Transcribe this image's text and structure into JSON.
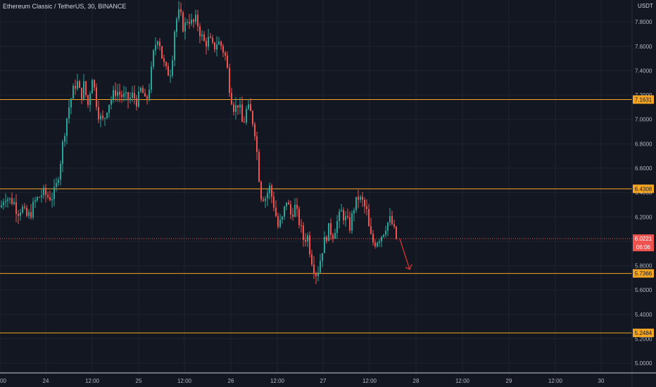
{
  "header": {
    "symbol_title": "Ethereum Classic / TetherUS, 30, BINANCE",
    "currency": "USDT"
  },
  "colors": {
    "background": "#131722",
    "grid": "#1f2330",
    "axis_text": "#b2b5be",
    "level_line": "#f5a623",
    "up_candle": "#26a69a",
    "down_candle": "#ef5350",
    "arrow": "#e53935"
  },
  "chart_data": {
    "type": "candlestick",
    "symbol": "Ethereum Classic / TetherUS",
    "interval": "30",
    "exchange": "BINANCE",
    "currency": "USDT",
    "ylim": [
      4.92,
      7.98
    ],
    "y_ticks": [
      "7.8000",
      "7.6000",
      "7.4000",
      "7.2000",
      "7.0000",
      "6.8000",
      "6.6000",
      "6.4000",
      "6.2000",
      "6.0000",
      "5.8000",
      "5.6000",
      "5.4000",
      "5.2000",
      "5.0000"
    ],
    "x_ticks": [
      "00",
      "24",
      "12:00",
      "25",
      "12:00",
      "26",
      "12:00",
      "27",
      "12:00",
      "28",
      "12:00",
      "29",
      "12:00",
      "30"
    ],
    "horizontal_levels": [
      {
        "price": 7.1631,
        "label": "7.1631"
      },
      {
        "price": 6.4308,
        "label": "6.4308"
      },
      {
        "price": 5.7366,
        "label": "5.7366"
      },
      {
        "price": 5.2484,
        "label": "5.2484"
      }
    ],
    "last_price": {
      "price": 6.0221,
      "label": "6.0221",
      "countdown": "06:06"
    },
    "close_path": [
      [
        0,
        6.28
      ],
      [
        6,
        6.38
      ],
      [
        12,
        6.34
      ],
      [
        18,
        6.33
      ],
      [
        24,
        6.24
      ],
      [
        30,
        6.28
      ],
      [
        36,
        6.2
      ],
      [
        42,
        6.22
      ],
      [
        48,
        6.32
      ],
      [
        54,
        6.36
      ],
      [
        60,
        6.4
      ],
      [
        66,
        6.37
      ],
      [
        72,
        6.36
      ],
      [
        78,
        6.42
      ],
      [
        84,
        6.62
      ],
      [
        90,
        6.88
      ],
      [
        96,
        7.08
      ],
      [
        102,
        7.22
      ],
      [
        108,
        7.32
      ],
      [
        114,
        7.18
      ],
      [
        118,
        7.28
      ],
      [
        124,
        7.12
      ],
      [
        130,
        7.36
      ],
      [
        136,
        7.14
      ],
      [
        140,
        7.02
      ],
      [
        146,
        6.98
      ],
      [
        152,
        7.12
      ],
      [
        158,
        7.18
      ],
      [
        164,
        7.24
      ],
      [
        170,
        7.2
      ],
      [
        176,
        7.18
      ],
      [
        182,
        7.16
      ],
      [
        188,
        7.2
      ],
      [
        194,
        7.14
      ],
      [
        200,
        7.26
      ],
      [
        206,
        7.12
      ],
      [
        212,
        7.3
      ],
      [
        218,
        7.58
      ],
      [
        224,
        7.7
      ],
      [
        230,
        7.48
      ],
      [
        236,
        7.38
      ],
      [
        242,
        7.4
      ],
      [
        248,
        7.8
      ],
      [
        254,
        7.88
      ],
      [
        260,
        7.74
      ],
      [
        266,
        7.84
      ],
      [
        272,
        7.78
      ],
      [
        278,
        7.82
      ],
      [
        284,
        7.7
      ],
      [
        290,
        7.62
      ],
      [
        296,
        7.66
      ],
      [
        302,
        7.58
      ],
      [
        308,
        7.64
      ],
      [
        314,
        7.6
      ],
      [
        320,
        7.5
      ],
      [
        326,
        7.22
      ],
      [
        332,
        7.08
      ],
      [
        338,
        7.14
      ],
      [
        344,
        6.94
      ],
      [
        350,
        7.1
      ],
      [
        356,
        7.04
      ],
      [
        362,
        6.88
      ],
      [
        366,
        6.58
      ],
      [
        370,
        6.38
      ],
      [
        376,
        6.36
      ],
      [
        382,
        6.44
      ],
      [
        388,
        6.3
      ],
      [
        394,
        6.12
      ],
      [
        400,
        6.18
      ],
      [
        406,
        6.34
      ],
      [
        412,
        6.22
      ],
      [
        418,
        6.28
      ],
      [
        424,
        6.16
      ],
      [
        430,
        6.02
      ],
      [
        436,
        6.04
      ],
      [
        440,
        5.9
      ],
      [
        444,
        5.8
      ],
      [
        448,
        5.74
      ],
      [
        452,
        5.78
      ],
      [
        456,
        5.92
      ],
      [
        460,
        6.0
      ],
      [
        466,
        6.1
      ],
      [
        472,
        6.06
      ],
      [
        478,
        6.16
      ],
      [
        484,
        6.24
      ],
      [
        490,
        6.18
      ],
      [
        496,
        6.12
      ],
      [
        502,
        6.28
      ],
      [
        508,
        6.36
      ],
      [
        514,
        6.32
      ],
      [
        520,
        6.24
      ],
      [
        524,
        6.06
      ],
      [
        530,
        5.98
      ],
      [
        536,
        6.02
      ],
      [
        542,
        6.06
      ],
      [
        548,
        6.14
      ],
      [
        554,
        6.18
      ],
      [
        560,
        6.06
      ],
      [
        563,
        6.0221
      ]
    ],
    "annotation": {
      "type": "arrow",
      "color": "down",
      "from_x": 568,
      "from_price": 6.02,
      "to_x": 582,
      "to_price": 5.77
    }
  }
}
